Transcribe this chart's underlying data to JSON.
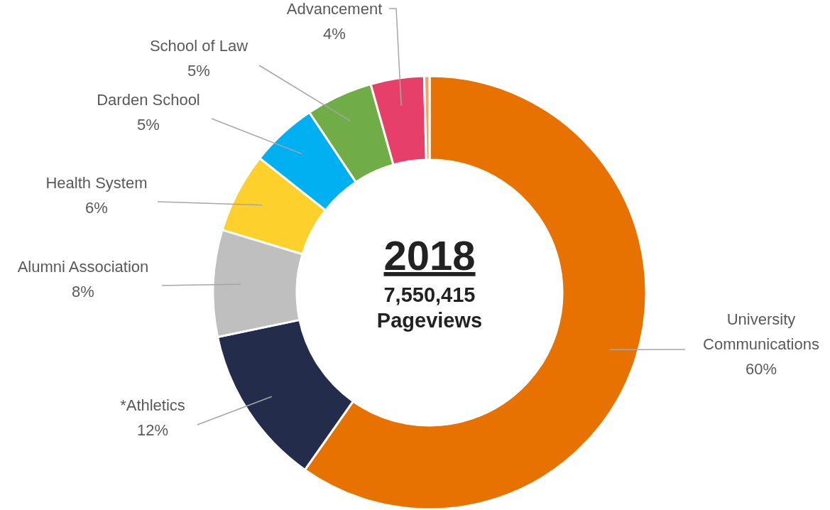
{
  "chart_data": {
    "type": "donut",
    "title": "2018",
    "annotations": [
      "7,550,415",
      "Pageviews"
    ],
    "categories": [
      "University Communications",
      "*Athletics",
      "Alumni Association",
      "Health System",
      "Darden School",
      "School of Law",
      "Advancement",
      null
    ],
    "values": [
      60,
      12,
      8,
      6,
      5,
      5,
      4,
      0.4
    ],
    "value_labels": [
      "60%",
      "12%",
      "8%",
      "6%",
      "5%",
      "5%",
      "4%",
      null
    ],
    "colors": [
      "#e87200",
      "#232d4b",
      "#bfbfbf",
      "#fdd02b",
      "#00b0f0",
      "#70ad47",
      "#e53f6a",
      "#f4a460"
    ]
  }
}
